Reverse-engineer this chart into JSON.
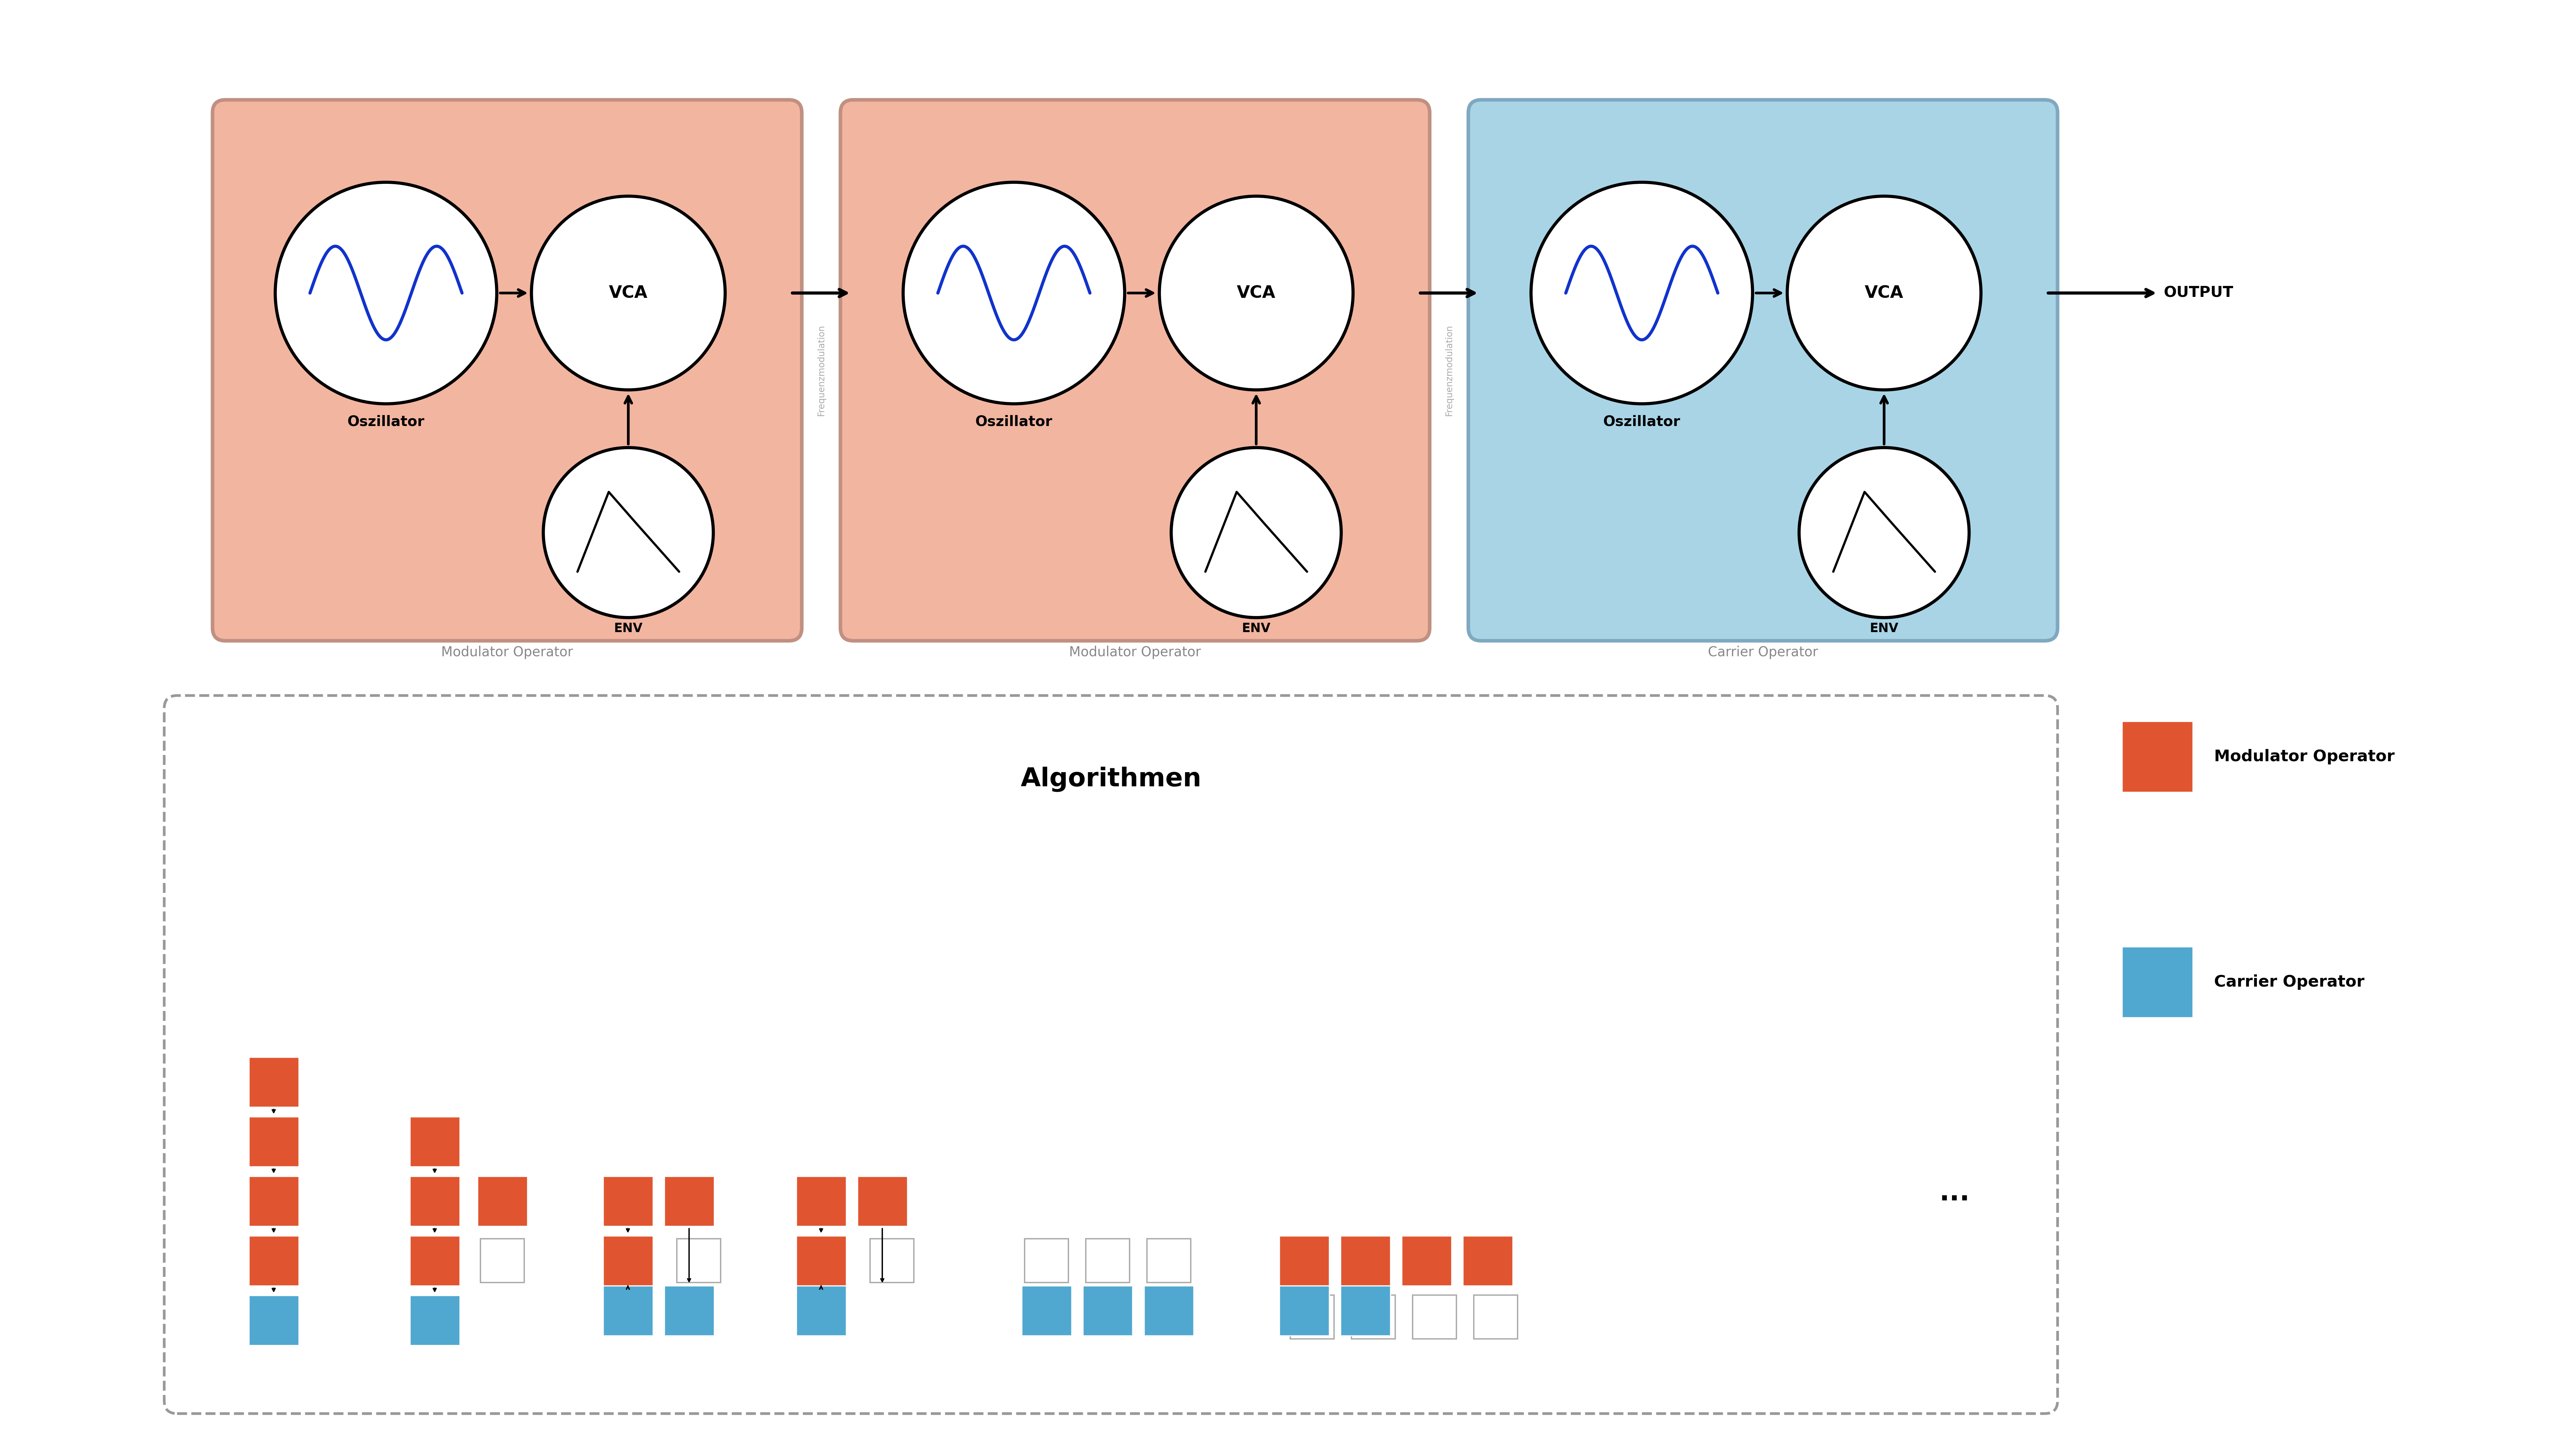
{
  "bg_color": "#ffffff",
  "modulator_bg": "#f2b5a0",
  "carrier_bg": "#a8d4e6",
  "modulator_border": "#c09080",
  "carrier_border": "#80a8c0",
  "circle_fill": "#ffffff",
  "circle_border": "#000000",
  "sine_color": "#1133cc",
  "arrow_color": "#000000",
  "freq_text_color": "#aaaaaa",
  "label_color": "#888888",
  "dashed_border_color": "#999999",
  "mod_sq_color": "#e05530",
  "car_sq_color": "#50a8d0",
  "osc_label": "Oszillator",
  "vca_label": "VCA",
  "env_label": "ENV",
  "modulator_label": "Modulator Operator",
  "carrier_label": "Carrier Operator",
  "freq_mod_text": "Frequenzmodulation",
  "output_text": "OUTPUT",
  "algo_title": "Algorithmen",
  "legend_mod": "Modulator Operator",
  "legend_car": "Carrier Operator",
  "dots_text": "..."
}
